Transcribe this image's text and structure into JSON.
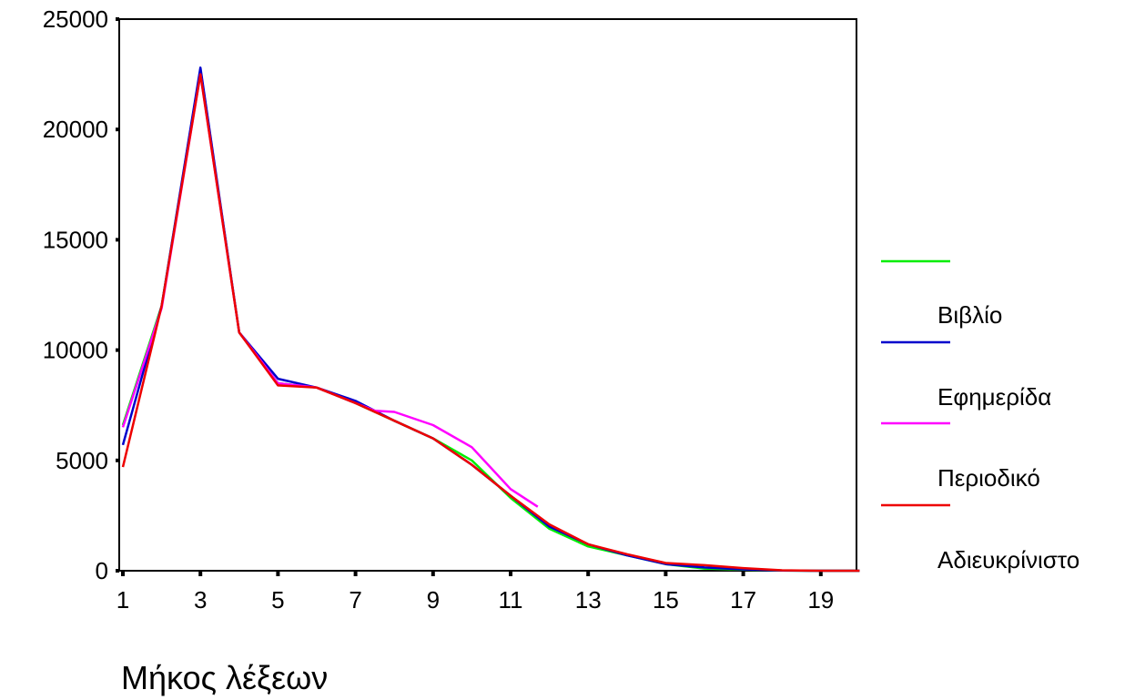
{
  "chart_data": {
    "type": "line",
    "xlabel": "Μήκος λέξεων",
    "ylabel": "",
    "xlim": [
      1,
      20
    ],
    "ylim": [
      0,
      25000
    ],
    "x_ticks": [
      1,
      3,
      5,
      7,
      9,
      11,
      13,
      15,
      17,
      19
    ],
    "y_ticks": [
      0,
      5000,
      10000,
      15000,
      20000,
      25000
    ],
    "grid": false,
    "legend_position": "right",
    "series": [
      {
        "name": "Βιβλίο",
        "color": "#00ee00",
        "points": [
          [
            1,
            6600
          ],
          [
            2,
            12000
          ],
          [
            3,
            22700
          ],
          [
            4,
            10800
          ],
          [
            5,
            8500
          ],
          [
            6,
            8300
          ],
          [
            7,
            7600
          ],
          [
            8,
            6800
          ],
          [
            9,
            6000
          ],
          [
            10,
            5000
          ],
          [
            11,
            3300
          ],
          [
            12,
            1900
          ],
          [
            13,
            1100
          ],
          [
            14,
            700
          ],
          [
            15,
            300
          ],
          [
            16,
            100
          ],
          [
            17,
            50
          ],
          [
            18,
            10
          ],
          [
            19,
            0
          ],
          [
            20,
            0
          ]
        ]
      },
      {
        "name": "Εφημερίδα",
        "color": "#0000cc",
        "points": [
          [
            1,
            5700
          ],
          [
            2,
            12000
          ],
          [
            3,
            22800
          ],
          [
            4,
            10800
          ],
          [
            5,
            8700
          ],
          [
            6,
            8300
          ],
          [
            7,
            7700
          ],
          [
            8,
            6800
          ],
          [
            9,
            6000
          ],
          [
            10,
            4800
          ],
          [
            11,
            3400
          ],
          [
            12,
            2000
          ],
          [
            13,
            1200
          ],
          [
            14,
            700
          ],
          [
            15,
            300
          ],
          [
            16,
            150
          ],
          [
            17,
            60
          ],
          [
            18,
            10
          ],
          [
            19,
            0
          ],
          [
            20,
            0
          ]
        ]
      },
      {
        "name": "Περιοδικό",
        "color": "#ff00ff",
        "points": [
          [
            1,
            6500
          ],
          [
            2,
            11900
          ],
          [
            3,
            22500
          ],
          [
            4,
            10800
          ],
          [
            5,
            8500
          ],
          [
            6,
            8300
          ],
          [
            7,
            7600
          ],
          [
            7.5,
            7250
          ],
          [
            8,
            7200
          ],
          [
            9,
            6600
          ],
          [
            10,
            5600
          ],
          [
            11,
            3700
          ],
          [
            11.7,
            2900
          ]
        ]
      },
      {
        "name": "Αδιευκρίνιστο",
        "color": "#ee0000",
        "points": [
          [
            1,
            4700
          ],
          [
            2,
            12000
          ],
          [
            3,
            22500
          ],
          [
            4,
            10800
          ],
          [
            5,
            8400
          ],
          [
            6,
            8300
          ],
          [
            7,
            7600
          ],
          [
            8,
            6800
          ],
          [
            9,
            6000
          ],
          [
            10,
            4800
          ],
          [
            11,
            3400
          ],
          [
            12,
            2100
          ],
          [
            13,
            1200
          ],
          [
            14,
            750
          ],
          [
            15,
            350
          ],
          [
            16,
            250
          ],
          [
            17,
            120
          ],
          [
            18,
            20
          ],
          [
            19,
            0
          ],
          [
            20,
            0
          ]
        ]
      }
    ]
  }
}
